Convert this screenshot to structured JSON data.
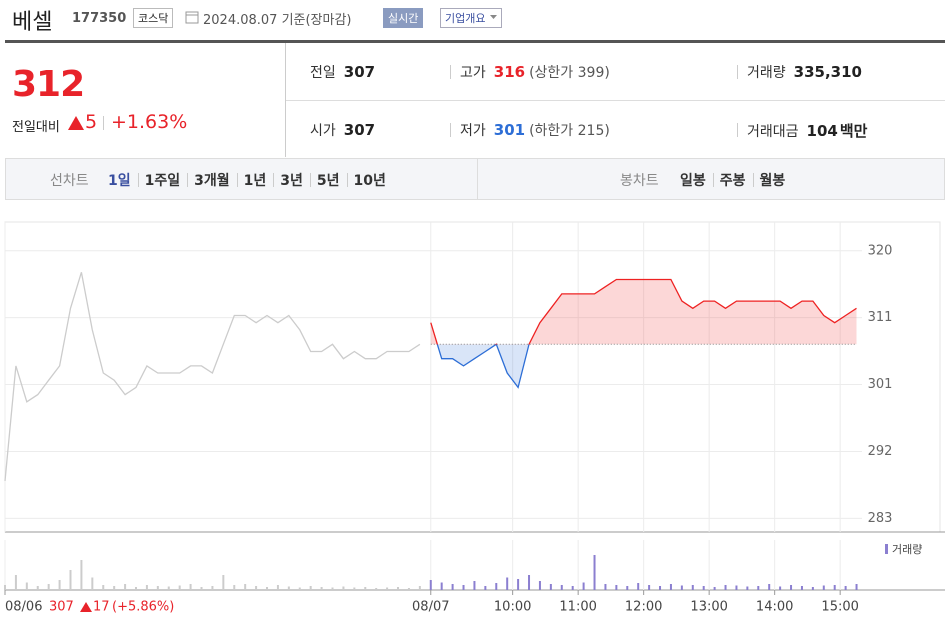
{
  "header": {
    "name": "베셀",
    "code": "177350",
    "market": "코스닥",
    "date": "2024.08.07 기준(장마감)",
    "realtime": "실시간",
    "overview": "기업개요"
  },
  "quote": {
    "price": 312,
    "change_label": "전일대비",
    "change": 5,
    "rate": "+1.63%"
  },
  "info": [
    {
      "label": "전일",
      "value": 307
    },
    {
      "label": "고가",
      "value": 316,
      "note": "(상한가 399)"
    },
    {
      "label": "거래량",
      "value": "335,310"
    },
    {
      "label": "시가",
      "value": 307
    },
    {
      "label": "저가",
      "value": 301,
      "note": "(하한가 215)"
    },
    {
      "label": "거래대금",
      "value": 104,
      "unit": "백만"
    }
  ],
  "tabs": {
    "line_label": "선차트",
    "line": [
      "1일",
      "1주일",
      "3개월",
      "1년",
      "3년",
      "5년",
      "10년"
    ],
    "candle_label": "봉차트",
    "candle": [
      "일봉",
      "주봉",
      "월봉"
    ]
  },
  "chart_data": [
    {
      "type": "line",
      "xlim": [
        0,
        785
      ],
      "ylim": [
        280.9,
        324.0
      ],
      "yticks": [
        320,
        {
          "value": 310.7,
          "label": "311"
        },
        {
          "value": 301.4,
          "label": "301"
        },
        {
          "value": 292.1,
          "label": "292"
        },
        {
          "value": 282.8,
          "label": "283"
        }
      ],
      "grid": true,
      "series": [
        {
          "color": "#cccccc",
          "x": [
            0,
            10,
            20,
            30,
            40,
            50,
            60,
            70,
            80,
            90,
            100,
            110,
            120,
            130,
            140,
            150,
            160,
            170,
            180,
            190,
            200,
            210,
            220,
            230,
            240,
            250,
            260,
            270,
            280,
            290,
            300,
            310,
            320,
            330,
            340,
            350,
            360,
            370,
            380
          ],
          "values": [
            288,
            304,
            299,
            300,
            302,
            304,
            312,
            317,
            309,
            303,
            302,
            300,
            301,
            304,
            303,
            303,
            303,
            304,
            304,
            303,
            307,
            311,
            311,
            310,
            311,
            310,
            311,
            309,
            306,
            306,
            307,
            305,
            306,
            305,
            305,
            306,
            306,
            306,
            307
          ]
        },
        {
          "color": "#ee2222",
          "color_below": "#2d6ed6",
          "x": [
            390,
            400,
            410,
            420,
            430,
            440,
            450,
            460,
            470,
            480,
            490,
            500,
            510,
            520,
            530,
            540,
            550,
            560,
            570,
            580,
            590,
            600,
            610,
            620,
            630,
            640,
            650,
            660,
            670,
            680,
            690,
            700,
            710,
            720,
            730,
            740,
            750,
            760,
            770,
            780
          ],
          "values": [
            310,
            305,
            305,
            304,
            305,
            306,
            307,
            303,
            301,
            307,
            310,
            312,
            314,
            314,
            314,
            314,
            315,
            316,
            316,
            316,
            316,
            316,
            316,
            313,
            312,
            313,
            313,
            312,
            313,
            313,
            313,
            313,
            313,
            312,
            313,
            313,
            311,
            310,
            311,
            312
          ]
        }
      ]
    },
    {
      "type": "bar",
      "xlim": [
        0,
        785
      ],
      "ylim": [
        0,
        100
      ],
      "xticks": [
        {
          "value": 0,
          "label": "08/06"
        },
        {
          "value": 390,
          "label": "08/07"
        },
        {
          "value": 465,
          "label": "10:00"
        },
        {
          "value": 525,
          "label": "11:00"
        },
        {
          "value": 585,
          "label": "12:00"
        },
        {
          "value": 645,
          "label": "13:00"
        },
        {
          "value": 705,
          "label": "14:00"
        },
        {
          "value": 765,
          "label": "15:00"
        }
      ],
      "legend": "top-right",
      "annotation": {
        "close": "307",
        "change": "17",
        "rate": "(+5.86%)"
      },
      "series": [
        {
          "color": "#cccccc",
          "x": [
            0,
            10,
            20,
            30,
            40,
            50,
            60,
            70,
            80,
            90,
            100,
            110,
            120,
            130,
            140,
            150,
            160,
            170,
            180,
            190,
            200,
            210,
            220,
            230,
            240,
            250,
            260,
            270,
            280,
            290,
            300,
            310,
            320,
            330,
            340,
            350,
            360,
            370,
            380
          ],
          "values": [
            10,
            30,
            15,
            8,
            12,
            20,
            40,
            60,
            25,
            10,
            8,
            12,
            6,
            10,
            8,
            7,
            9,
            12,
            6,
            8,
            30,
            10,
            12,
            8,
            6,
            10,
            7,
            5,
            8,
            6,
            5,
            7,
            5,
            6,
            4,
            5,
            6,
            4,
            8
          ]
        },
        {
          "name": "거래량",
          "color": "#8b7fd0",
          "x": [
            390,
            400,
            410,
            420,
            430,
            440,
            450,
            460,
            470,
            480,
            490,
            500,
            510,
            520,
            530,
            540,
            550,
            560,
            570,
            580,
            590,
            600,
            610,
            620,
            630,
            640,
            650,
            660,
            670,
            680,
            690,
            700,
            710,
            720,
            730,
            740,
            750,
            760,
            770,
            780
          ],
          "values": [
            20,
            15,
            12,
            10,
            18,
            8,
            14,
            25,
            22,
            30,
            18,
            12,
            10,
            8,
            15,
            70,
            12,
            10,
            8,
            14,
            10,
            8,
            12,
            9,
            10,
            8,
            6,
            10,
            9,
            7,
            8,
            12,
            7,
            10,
            8,
            6,
            9,
            10,
            8,
            12
          ]
        }
      ]
    }
  ]
}
